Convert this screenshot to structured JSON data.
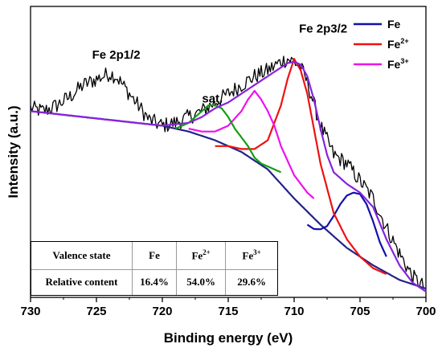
{
  "chart_data": {
    "type": "line",
    "xlabel": "Binding energy (eV)",
    "ylabel": "Intensity (a.u.)",
    "xlim": [
      730,
      700
    ],
    "x_reversed": true,
    "ylim": [
      0,
      100
    ],
    "xticks": [
      "730",
      "725",
      "720",
      "715",
      "710",
      "705",
      "700"
    ],
    "y_tick_labels": false,
    "grid": false,
    "legend": {
      "position": "top-right",
      "entries": [
        {
          "base": "Fe",
          "sup": "",
          "color": "#1111aa"
        },
        {
          "base": "Fe",
          "sup": "2+",
          "color": "#ee1111"
        },
        {
          "base": "Fe",
          "sup": "3+",
          "color": "#ee11ee"
        }
      ]
    },
    "annotations": [
      {
        "text": "Fe 2p1/2",
        "x": 723.5,
        "y": 82
      },
      {
        "text": "sat.",
        "x": 716.2,
        "y": 67
      },
      {
        "text": "Fe 2p3/2",
        "x": 707.8,
        "y": 91
      }
    ],
    "series": [
      {
        "name": "",
        "color": "#000000",
        "x": [
          730,
          729,
          728,
          727,
          726,
          725,
          724,
          723.5,
          723,
          722,
          721,
          720,
          719,
          718,
          717,
          716,
          715,
          714,
          713,
          712,
          711,
          710.5,
          710,
          709.5,
          709,
          708,
          707,
          706,
          705,
          704,
          703,
          702,
          701,
          700
        ],
        "y": [
          65,
          64,
          66,
          69,
          73,
          75,
          77,
          76,
          73,
          67,
          61,
          59,
          60,
          62,
          64,
          67,
          70,
          73,
          76,
          78,
          81,
          82,
          81,
          79,
          74,
          59,
          49,
          46,
          40,
          34,
          24,
          15,
          7,
          3
        ]
      },
      {
        "name": "",
        "color": "#222288",
        "x": [
          730,
          728,
          726,
          724,
          722,
          720,
          718,
          716,
          714,
          712,
          710,
          708,
          706,
          704,
          702,
          700
        ],
        "y": [
          64,
          63,
          62,
          61,
          60,
          59,
          57,
          54,
          50,
          44,
          34,
          25,
          17,
          11,
          6,
          3
        ]
      },
      {
        "name": "Fe",
        "color": "#1111aa",
        "x": [
          709,
          708.5,
          708,
          707.5,
          707,
          706.5,
          706,
          705.5,
          705,
          704.5,
          704,
          703.5,
          703
        ],
        "y": [
          25,
          23.5,
          23.4,
          24.5,
          28,
          32,
          35,
          36,
          35.5,
          32,
          26,
          19,
          14
        ]
      },
      {
        "name": "Fe2+",
        "color": "#ee1111",
        "x": [
          716,
          715,
          714,
          713,
          712,
          711,
          710.5,
          710,
          709.5,
          709,
          708.5,
          708,
          707,
          706,
          705,
          704,
          703.5,
          703
        ],
        "y": [
          52,
          52,
          51,
          51,
          54,
          66,
          75,
          82,
          78,
          70,
          58,
          46,
          29,
          20,
          14,
          10,
          9,
          8
        ]
      },
      {
        "name": "Fe3+",
        "color": "#ee11ee",
        "x": [
          718,
          717,
          716,
          715,
          714,
          713.5,
          713,
          712.5,
          712,
          711.5,
          711,
          710.5,
          710,
          709.5,
          709,
          708.5
        ],
        "y": [
          58,
          57,
          57,
          59,
          64,
          68,
          71,
          68,
          64,
          59,
          52,
          47,
          42,
          39,
          36,
          34
        ]
      },
      {
        "name": "",
        "color": "#11a011",
        "x": [
          719,
          718,
          717,
          716.5,
          716,
          715.5,
          715,
          714.5,
          714,
          713.5,
          713,
          712.5,
          712,
          711.5,
          711
        ],
        "y": [
          58,
          60,
          64,
          66,
          66,
          65,
          62,
          58,
          55,
          52,
          48,
          46,
          45,
          44,
          43
        ]
      },
      {
        "name": "",
        "color": "#8822dd",
        "x": [
          730,
          728,
          726,
          724,
          722,
          720,
          718,
          717,
          716,
          715,
          714,
          713,
          712,
          711,
          710.5,
          710,
          709.5,
          709,
          708.5,
          708,
          707.5,
          707,
          706,
          705,
          704,
          703,
          702,
          701,
          700
        ],
        "y": [
          64,
          63,
          62,
          61,
          60,
          59,
          60,
          62,
          65,
          67,
          70,
          73,
          76,
          79,
          80.5,
          81,
          80,
          76,
          68,
          58,
          49,
          43,
          39,
          36,
          31,
          20,
          11,
          5,
          2
        ]
      }
    ]
  },
  "table": {
    "header": {
      "label": "Valence state",
      "fe": "Fe",
      "fe2": {
        "base": "Fe",
        "sup": "2+"
      },
      "fe3": {
        "base": "Fe",
        "sup": "3+"
      }
    },
    "row": {
      "label": "Relative content",
      "fe": "16.4%",
      "fe2": "54.0%",
      "fe3": "29.6%"
    }
  }
}
